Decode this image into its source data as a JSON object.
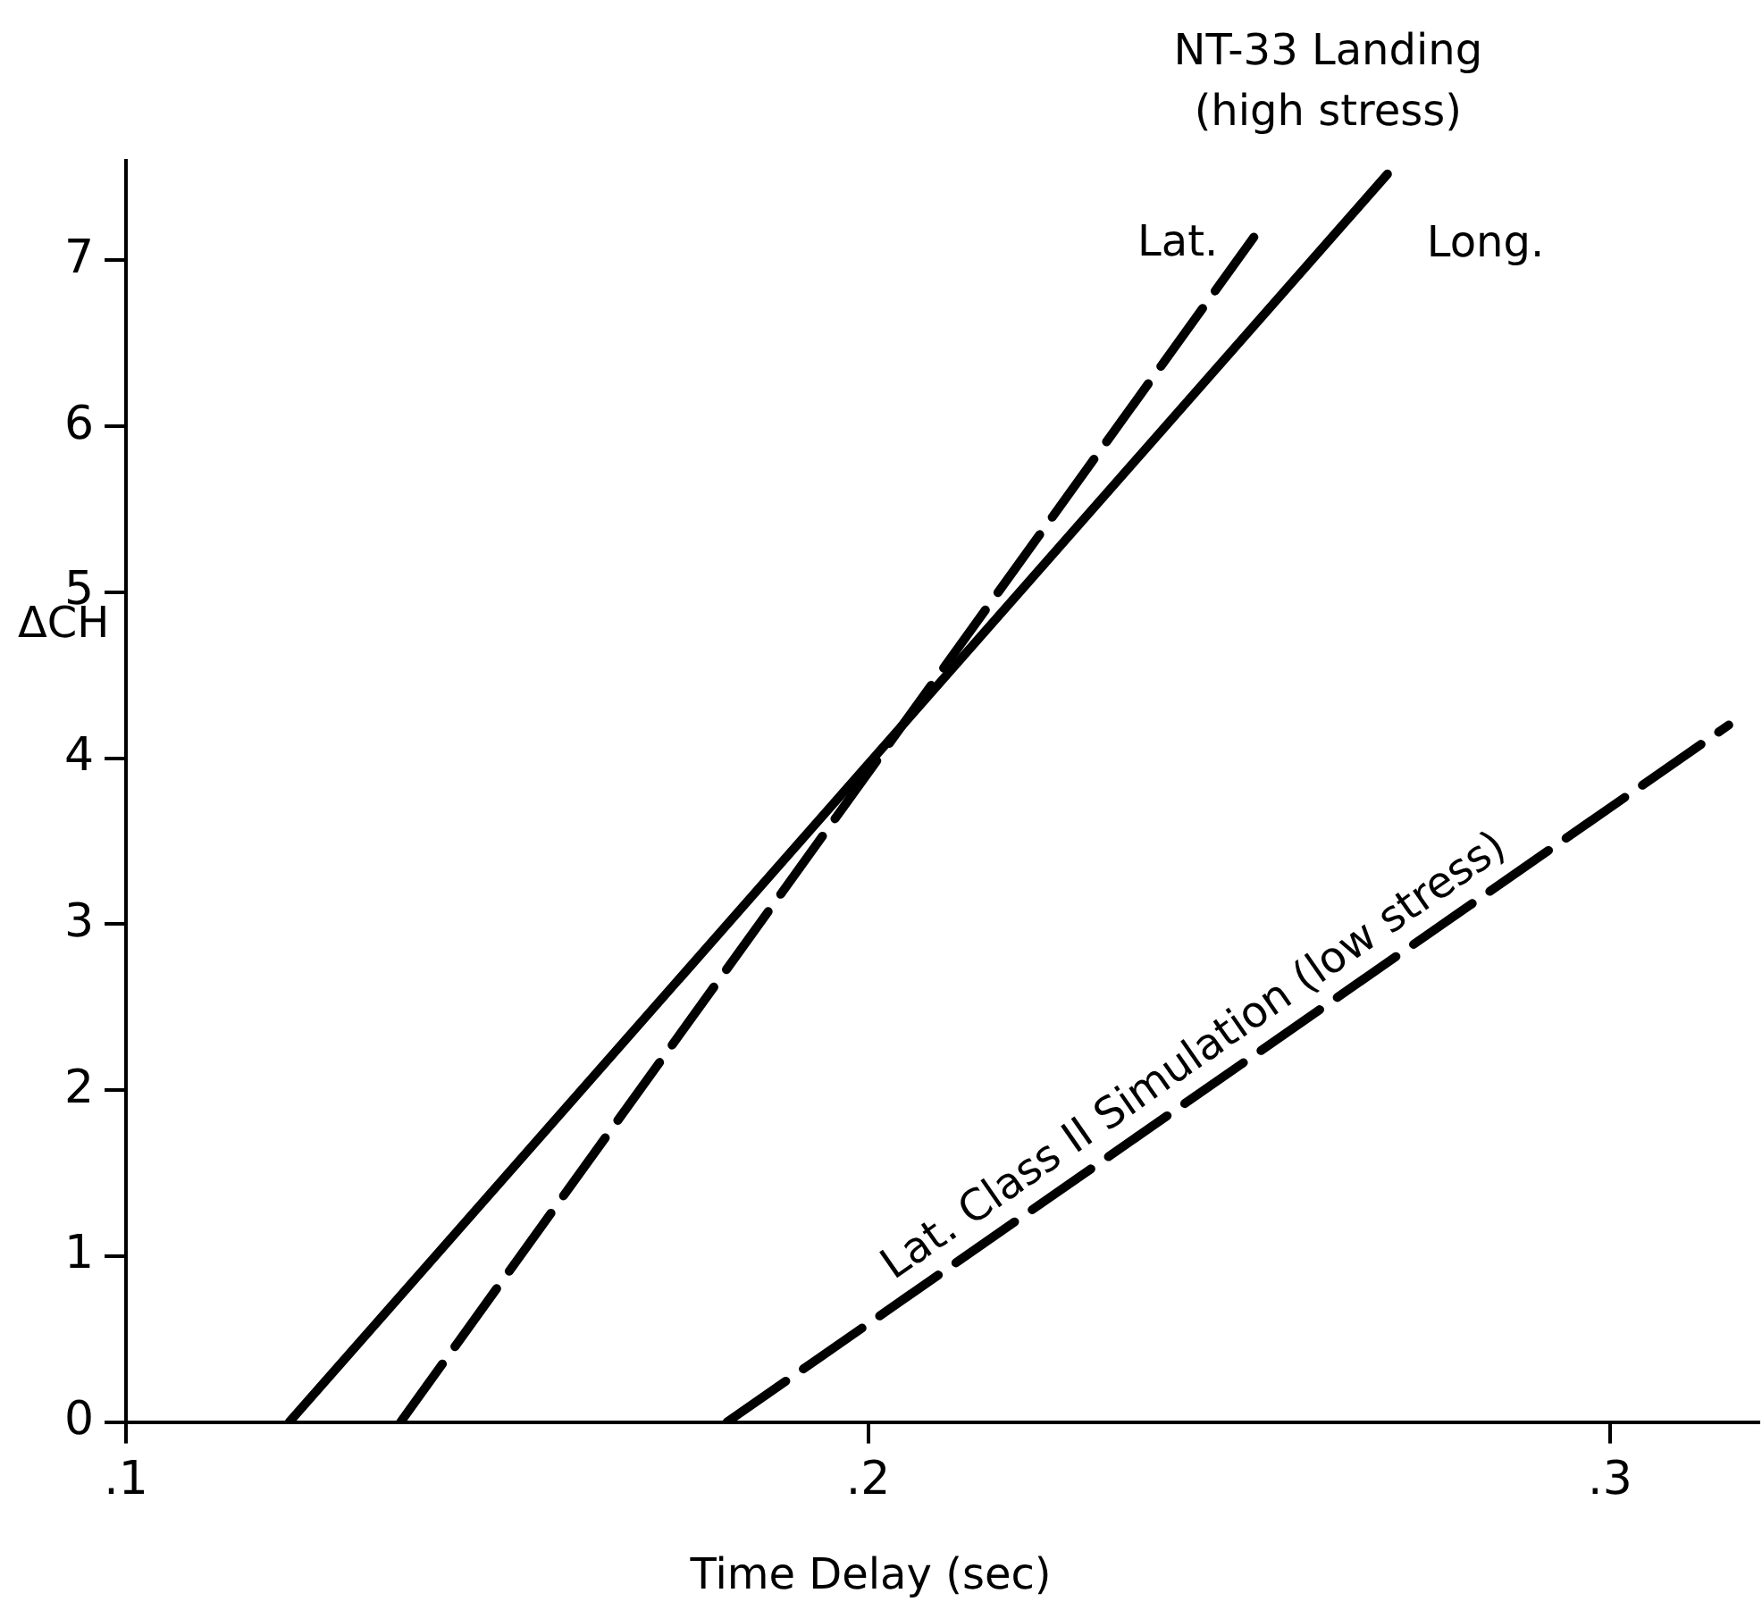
{
  "chart_data": {
    "type": "line",
    "xlabel": "Time Delay (sec)",
    "ylabel": "ΔCH",
    "annotations": [
      "NT-33 Landing\n(high stress)"
    ],
    "series": [
      {
        "name": "Long.",
        "color": "#000000",
        "x": [
          0.122,
          0.27
        ],
        "values": [
          0,
          7.52
        ],
        "line_style": "solid"
      },
      {
        "name": "Lat.",
        "color": "#000000",
        "x": [
          0.137,
          0.252
        ],
        "values": [
          0,
          7.14
        ],
        "line_style": "dashed"
      },
      {
        "name": "Lat. Class II Simulation (low stress)",
        "color": "#000000",
        "x": [
          0.181,
          0.316
        ],
        "values": [
          0,
          4.2
        ],
        "line_style": "dashed"
      }
    ],
    "xlim": [
      0.1,
      0.32
    ],
    "ylim": [
      0,
      7.6
    ],
    "xticks": [
      {
        "value": 0.1,
        "label": ".1"
      },
      {
        "value": 0.2,
        "label": ".2"
      },
      {
        "value": 0.3,
        "label": ".3"
      }
    ],
    "yticks": [
      0,
      1,
      2,
      3,
      4,
      5,
      6,
      7
    ],
    "grid": false,
    "legend": false,
    "marker": "none"
  }
}
